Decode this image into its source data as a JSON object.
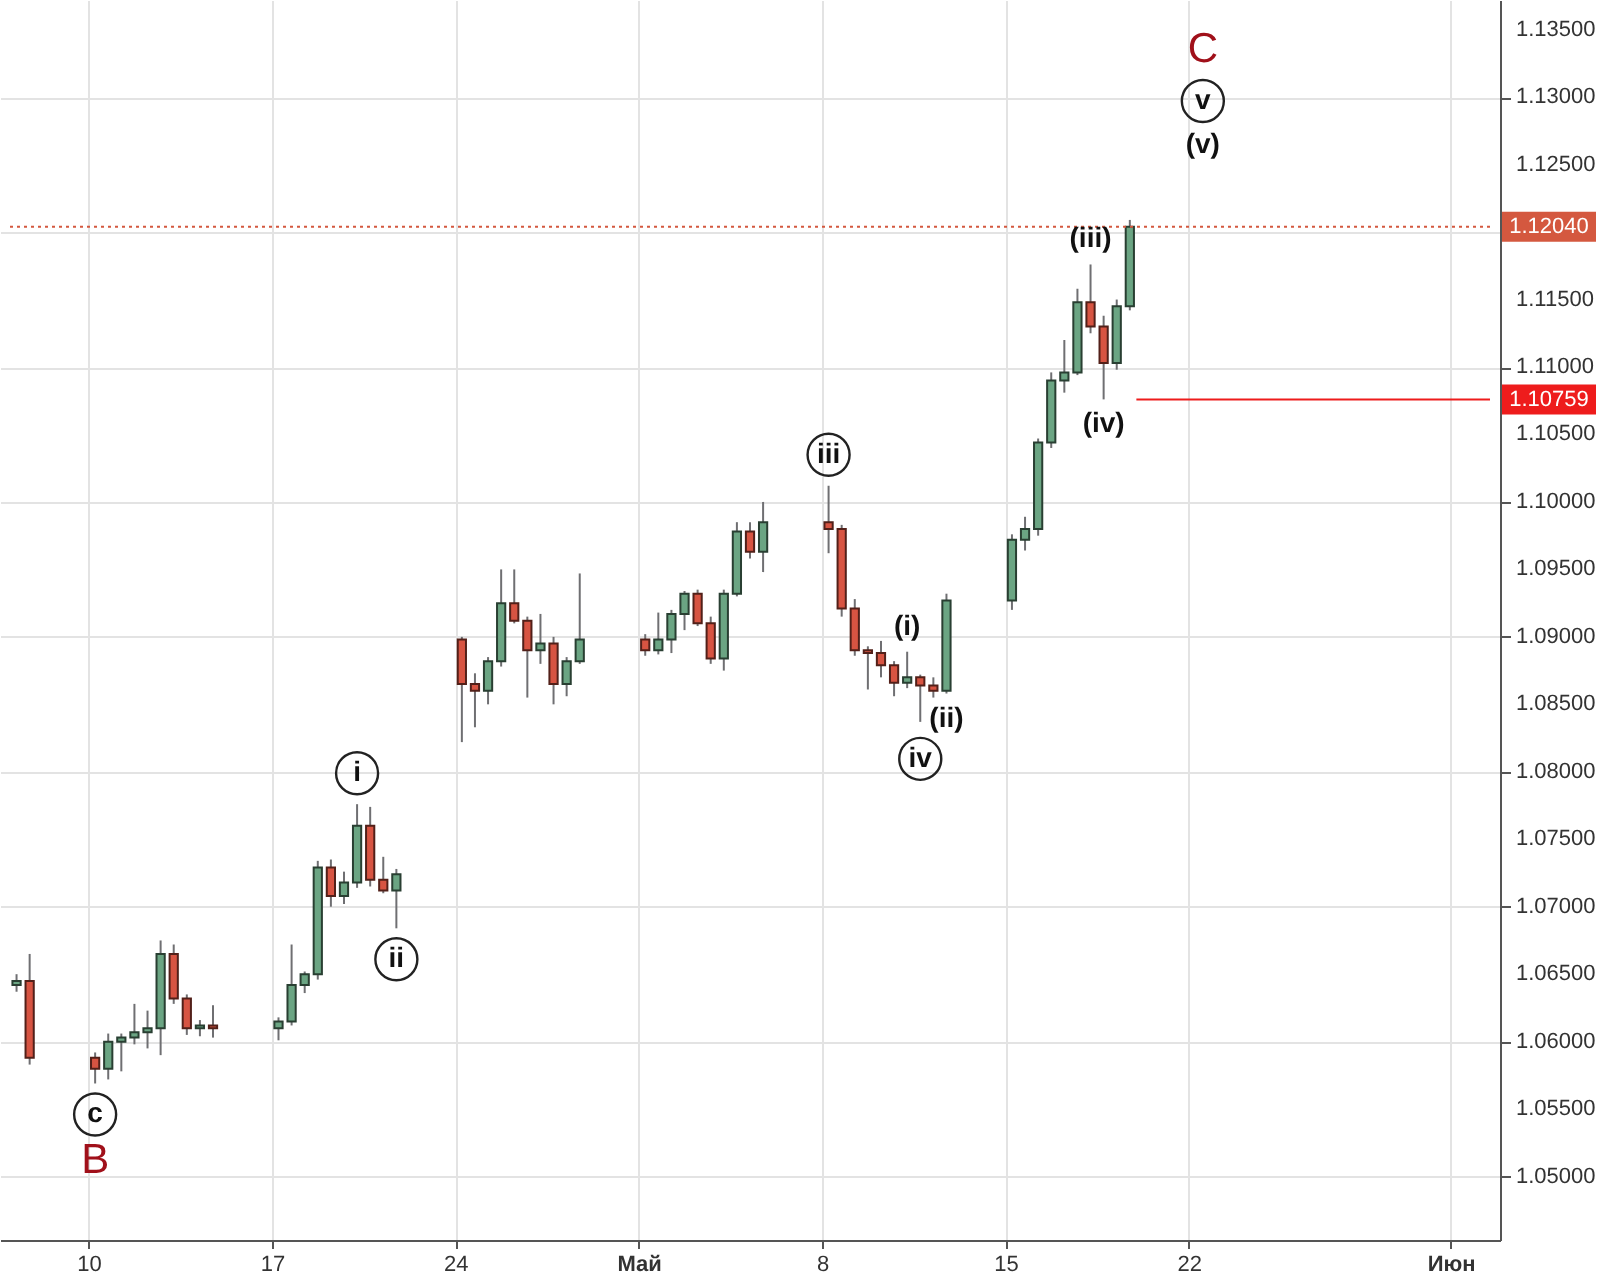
{
  "chart_data": {
    "type": "candlestick",
    "x": [
      "--04-07T06:00",
      "--04-07T18:00",
      "--04-10T06:00",
      "--04-10T18:00",
      "--04-11T06:00",
      "--04-11T18:00",
      "--04-12T06:00",
      "--04-12T18:00",
      "--04-13T06:00",
      "--04-13T18:00",
      "--04-14T06:00",
      "--04-14T18:00",
      "--04-17T06:00",
      "--04-17T18:00",
      "--04-18T06:00",
      "--04-18T18:00",
      "--04-19T06:00",
      "--04-19T18:00",
      "--04-20T06:00",
      "--04-20T18:00",
      "--04-21T06:00",
      "--04-21T18:00",
      "--04-24T06:00",
      "--04-24T18:00",
      "--04-25T06:00",
      "--04-25T18:00",
      "--04-26T06:00",
      "--04-26T18:00",
      "--04-27T06:00",
      "--04-27T18:00",
      "--04-28T06:00",
      "--04-28T18:00",
      "--05-01T06:00",
      "--05-01T18:00",
      "--05-02T06:00",
      "--05-02T18:00",
      "--05-03T06:00",
      "--05-03T18:00",
      "--05-04T06:00",
      "--05-04T18:00",
      "--05-05T06:00",
      "--05-05T18:00",
      "--05-08T06:00",
      "--05-08T18:00",
      "--05-09T06:00",
      "--05-09T18:00",
      "--05-10T06:00",
      "--05-10T18:00",
      "--05-11T06:00",
      "--05-11T18:00",
      "--05-12T06:00",
      "--05-12T18:00",
      "--05-15T06:00",
      "--05-15T18:00",
      "--05-16T06:00",
      "--05-16T18:00",
      "--05-17T06:00",
      "--05-17T18:00",
      "--05-18T06:00",
      "--05-18T18:00",
      "--05-19T06:00",
      "--05-19T18:00"
    ],
    "ohlc": [
      [
        1.0642,
        1.065,
        1.0637,
        1.0645
      ],
      [
        1.0645,
        1.0665,
        1.0583,
        1.0588
      ],
      [
        1.0588,
        1.0592,
        1.0569,
        1.058
      ],
      [
        1.058,
        1.0606,
        1.0572,
        1.06
      ],
      [
        1.06,
        1.0606,
        1.0578,
        1.0603
      ],
      [
        1.0603,
        1.0628,
        1.0598,
        1.0607
      ],
      [
        1.0607,
        1.0623,
        1.0595,
        1.061
      ],
      [
        1.061,
        1.0675,
        1.059,
        1.0665
      ],
      [
        1.0665,
        1.0672,
        1.0628,
        1.0632
      ],
      [
        1.0632,
        1.0635,
        1.0605,
        1.061
      ],
      [
        1.061,
        1.0616,
        1.0604,
        1.0612
      ],
      [
        1.0612,
        1.0627,
        1.0603,
        1.061
      ],
      [
        1.061,
        1.0618,
        1.0601,
        1.0615
      ],
      [
        1.0615,
        1.0672,
        1.0612,
        1.0642
      ],
      [
        1.0642,
        1.0652,
        1.0636,
        1.065
      ],
      [
        1.065,
        1.0734,
        1.0646,
        1.0729
      ],
      [
        1.0729,
        1.0735,
        1.07,
        1.0708
      ],
      [
        1.0708,
        1.0726,
        1.0702,
        1.0718
      ],
      [
        1.0718,
        1.0776,
        1.0714,
        1.076
      ],
      [
        1.076,
        1.0774,
        1.0715,
        1.072
      ],
      [
        1.072,
        1.0737,
        1.071,
        1.0712
      ],
      [
        1.0712,
        1.0728,
        1.0684,
        1.0724
      ],
      [
        1.0898,
        1.09,
        1.0822,
        1.0865
      ],
      [
        1.0865,
        1.0873,
        1.0833,
        1.086
      ],
      [
        1.086,
        1.0885,
        1.085,
        1.0882
      ],
      [
        1.0882,
        1.095,
        1.0878,
        1.0925
      ],
      [
        1.0925,
        1.095,
        1.091,
        1.0912
      ],
      [
        1.0912,
        1.0915,
        1.0855,
        1.089
      ],
      [
        1.089,
        1.0917,
        1.088,
        1.0895
      ],
      [
        1.0895,
        1.09,
        1.085,
        1.0865
      ],
      [
        1.0865,
        1.0885,
        1.0856,
        1.0882
      ],
      [
        1.0882,
        1.0947,
        1.088,
        1.0898
      ],
      [
        1.0898,
        1.0902,
        1.0886,
        1.089
      ],
      [
        1.089,
        1.0918,
        1.0887,
        1.0898
      ],
      [
        1.0898,
        1.092,
        1.0888,
        1.0917
      ],
      [
        1.0917,
        1.0934,
        1.0905,
        1.0932
      ],
      [
        1.0932,
        1.0935,
        1.0908,
        1.091
      ],
      [
        1.091,
        1.0915,
        1.088,
        1.0884
      ],
      [
        1.0884,
        1.0935,
        1.0875,
        1.0932
      ],
      [
        1.0932,
        1.0985,
        1.093,
        1.0978
      ],
      [
        1.0978,
        1.0985,
        1.0958,
        1.0963
      ],
      [
        1.0963,
        1.1,
        1.0948,
        1.0985
      ],
      [
        1.0985,
        1.1012,
        1.0962,
        1.098
      ],
      [
        1.098,
        1.0983,
        1.0915,
        1.0921
      ],
      [
        1.0921,
        1.0928,
        1.0886,
        1.089
      ],
      [
        1.089,
        1.0893,
        1.0861,
        1.0888
      ],
      [
        1.0888,
        1.0897,
        1.087,
        1.0879
      ],
      [
        1.0879,
        1.0882,
        1.0856,
        1.0866
      ],
      [
        1.0866,
        1.0889,
        1.0862,
        1.087
      ],
      [
        1.087,
        1.0872,
        1.0837,
        1.0864
      ],
      [
        1.0864,
        1.087,
        1.0855,
        1.086
      ],
      [
        1.086,
        1.0932,
        1.0858,
        1.0927
      ],
      [
        1.0927,
        1.0976,
        1.092,
        1.0972
      ],
      [
        1.0972,
        1.0989,
        1.0964,
        1.098
      ],
      [
        1.098,
        1.1047,
        1.0975,
        1.1044
      ],
      [
        1.1044,
        1.1096,
        1.104,
        1.109
      ],
      [
        1.109,
        1.112,
        1.1081,
        1.1096
      ],
      [
        1.1096,
        1.1158,
        1.1094,
        1.1148
      ],
      [
        1.1148,
        1.1176,
        1.1125,
        1.113
      ],
      [
        1.113,
        1.1138,
        1.1076,
        1.1103
      ],
      [
        1.1103,
        1.115,
        1.1098,
        1.1145
      ],
      [
        1.1145,
        1.1209,
        1.1142,
        1.1204
      ]
    ],
    "colors": [
      "#6ba583",
      "#d75442",
      "#d75442",
      "#6ba583",
      "#6ba583",
      "#6ba583",
      "#6ba583",
      "#6ba583",
      "#d75442",
      "#d75442",
      "#6ba583",
      "#d75442",
      "#6ba583",
      "#6ba583",
      "#6ba583",
      "#6ba583",
      "#d75442",
      "#6ba583",
      "#6ba583",
      "#d75442",
      "#d75442",
      "#6ba583",
      "#d75442",
      "#d75442",
      "#6ba583",
      "#6ba583",
      "#d75442",
      "#d75442",
      "#6ba583",
      "#d75442",
      "#6ba583",
      "#6ba583",
      "#d75442",
      "#6ba583",
      "#6ba583",
      "#6ba583",
      "#d75442",
      "#d75442",
      "#6ba583",
      "#6ba583",
      "#d75442",
      "#6ba583",
      "#d75442",
      "#d75442",
      "#d75442",
      "#d75442",
      "#d75442",
      "#d75442",
      "#6ba583",
      "#d75442",
      "#d75442",
      "#6ba583",
      "#6ba583",
      "#6ba583",
      "#6ba583",
      "#6ba583",
      "#6ba583",
      "#6ba583",
      "#d75442",
      "#d75442",
      "#6ba583",
      "#6ba583"
    ],
    "xlim": [
      "--04-07T00:00",
      "--06-02T12:00"
    ],
    "ylim": [
      1.0453,
      1.1372
    ],
    "xticks": [
      {
        "value": "--04-10",
        "label": "10"
      },
      {
        "value": "--04-17",
        "label": "17"
      },
      {
        "value": "--04-24",
        "label": "24"
      },
      {
        "value": "--05-01",
        "label": "Май"
      },
      {
        "value": "--05-08",
        "label": "8"
      },
      {
        "value": "--05-15",
        "label": "15"
      },
      {
        "value": "--05-22",
        "label": "22"
      },
      {
        "value": "--06-01",
        "label": "Июн"
      }
    ],
    "yticks": [
      {
        "value": 1.05,
        "label": "1.05000"
      },
      {
        "value": 1.055,
        "label": "1.05500"
      },
      {
        "value": 1.06,
        "label": "1.06000"
      },
      {
        "value": 1.065,
        "label": "1.06500"
      },
      {
        "value": 1.07,
        "label": "1.07000"
      },
      {
        "value": 1.075,
        "label": "1.07500"
      },
      {
        "value": 1.08,
        "label": "1.08000"
      },
      {
        "value": 1.085,
        "label": "1.08500"
      },
      {
        "value": 1.09,
        "label": "1.09000"
      },
      {
        "value": 1.095,
        "label": "1.09500"
      },
      {
        "value": 1.1,
        "label": "1.10000"
      },
      {
        "value": 1.105,
        "label": "1.10500"
      },
      {
        "value": 1.11,
        "label": "1.11000"
      },
      {
        "value": 1.115,
        "label": "1.11500"
      },
      {
        "value": 1.12,
        "label": null
      },
      {
        "value": 1.125,
        "label": "1.12500"
      },
      {
        "value": 1.13,
        "label": "1.13000"
      },
      {
        "value": 1.135,
        "label": "1.13500"
      }
    ],
    "grid": true,
    "ref_lines": [
      {
        "axis": "y",
        "value": 1.1204,
        "label": "1.12040",
        "color": "#d4583f",
        "line_style": "dotted"
      },
      {
        "axis": "y",
        "value": 1.10759,
        "label": "1.10759",
        "color": "#ee1c1c",
        "line_style": "solid"
      }
    ],
    "annotations": [
      "C",
      "v",
      "(v)",
      {
        "text": "(iii)",
        "x": "--05-18T06:00",
        "y": 1.1176
      },
      {
        "text": "(iv)",
        "x": "--05-18T18:00",
        "y": 1.1076
      },
      {
        "text": "iii",
        "x": "--05-08T06:00",
        "y": 1.1012
      },
      {
        "text": "(i)",
        "x": "--05-11T06:00",
        "y": 1.0889
      },
      {
        "text": "(ii)",
        "x": "--05-12T18:00",
        "y": 1.0858
      },
      {
        "text": "iv",
        "x": "--05-11T18:00",
        "y": 1.0837
      },
      {
        "text": "i",
        "x": "--04-20T06:00",
        "y": 1.0776
      },
      {
        "text": "ii",
        "x": "--04-21T18:00",
        "y": 1.0684
      },
      {
        "text": "c",
        "x": "--04-10T06:00",
        "y": 1.0569
      },
      {
        "text": "B",
        "x": "--04-10T06:00",
        "y": 1.0569
      }
    ]
  }
}
